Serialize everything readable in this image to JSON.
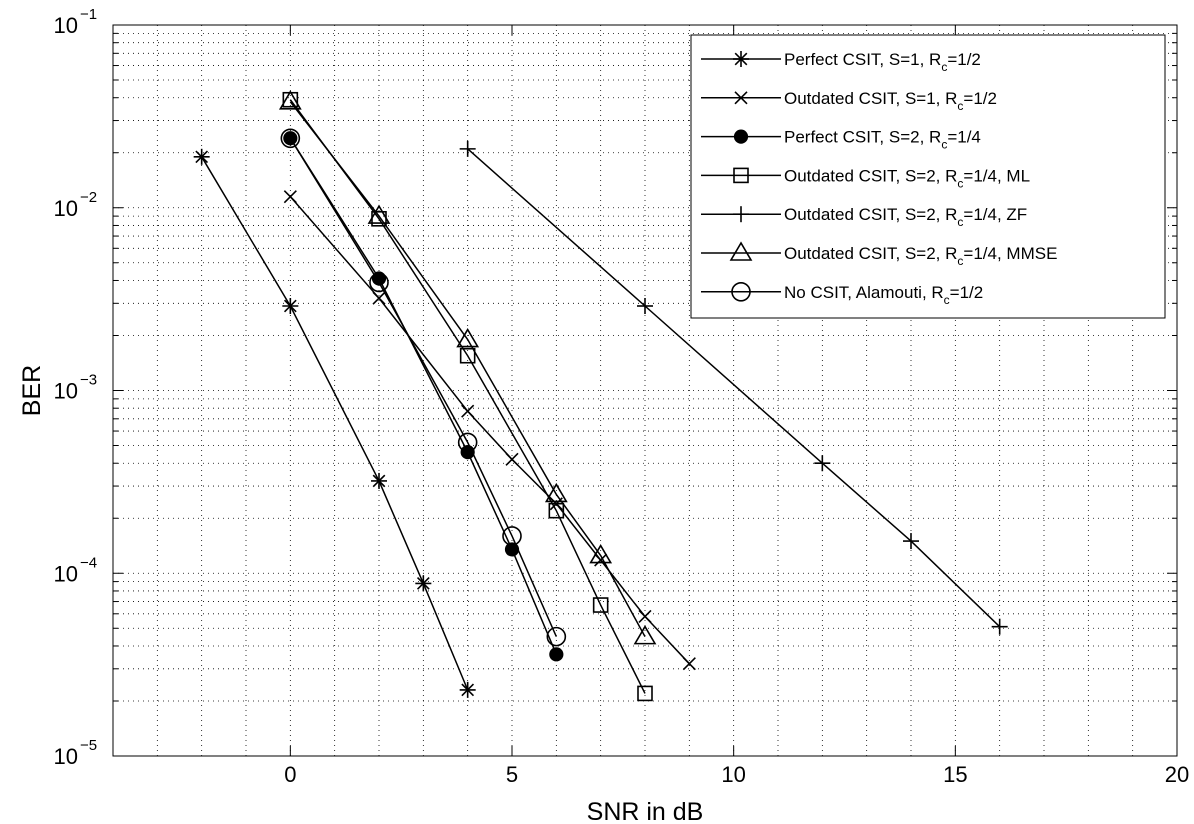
{
  "chart_data": {
    "type": "line",
    "title": "",
    "xlabel": "SNR in dB",
    "ylabel": "BER",
    "xlim": [
      -4,
      20
    ],
    "ylim": [
      1e-05,
      0.1
    ],
    "yscale": "log",
    "grid": true,
    "legend_position": "top-right",
    "x_ticks": [
      {
        "value": 0,
        "label": "0"
      },
      {
        "value": 5,
        "label": "5"
      },
      {
        "value": 10,
        "label": "10"
      },
      {
        "value": 15,
        "label": "15"
      },
      {
        "value": 20,
        "label": "20"
      }
    ],
    "y_ticks": [
      {
        "value": 1e-05,
        "base": "10",
        "exp": "−5"
      },
      {
        "value": 0.0001,
        "base": "10",
        "exp": "−4"
      },
      {
        "value": 0.001,
        "base": "10",
        "exp": "−3"
      },
      {
        "value": 0.01,
        "base": "10",
        "exp": "−2"
      },
      {
        "value": 0.1,
        "base": "10",
        "exp": "−1"
      }
    ],
    "series": [
      {
        "name": "Perfect CSIT, S=1, R_c=1/2",
        "label_main": "Perfect CSIT, S=1, R",
        "label_sub": "c",
        "label_tail": "=1/2",
        "marker": "asterisk",
        "x": [
          -2,
          0,
          2,
          3,
          4
        ],
        "y": [
          0.019,
          0.0029,
          0.00032,
          8.8e-05,
          2.3e-05
        ]
      },
      {
        "name": "Outdated CSIT, S=1, R_c=1/2",
        "label_main": "Outdated CSIT, S=1, R",
        "label_sub": "c",
        "label_tail": "=1/2",
        "marker": "x",
        "x": [
          0,
          2,
          4,
          5,
          6,
          7,
          8,
          9
        ],
        "y": [
          0.0115,
          0.0032,
          0.00077,
          0.00042,
          0.00024,
          0.000118,
          5.8e-05,
          3.2e-05
        ]
      },
      {
        "name": "Perfect CSIT, S=2, R_c=1/4",
        "label_main": "Perfect CSIT, S=2, R",
        "label_sub": "c",
        "label_tail": "=1/4",
        "marker": "filled-circle",
        "x": [
          0,
          2,
          4,
          5,
          6
        ],
        "y": [
          0.024,
          0.0041,
          0.00046,
          0.000135,
          3.6e-05
        ]
      },
      {
        "name": "Outdated CSIT, S=2, R_c=1/4, ML",
        "label_main": "Outdated CSIT, S=2, R",
        "label_sub": "c",
        "label_tail": "=1/4, ML",
        "marker": "square",
        "x": [
          0,
          2,
          4,
          6,
          7,
          8
        ],
        "y": [
          0.039,
          0.0087,
          0.00155,
          0.00022,
          6.7e-05,
          2.2e-05
        ]
      },
      {
        "name": "Outdated CSIT, S=2, R_c=1/4, ZF",
        "label_main": "Outdated CSIT, S=2, R",
        "label_sub": "c",
        "label_tail": "=1/4, ZF",
        "marker": "plus",
        "x": [
          4,
          8,
          12,
          14,
          16
        ],
        "y": [
          0.021,
          0.0029,
          0.0004,
          0.00015,
          5.1e-05
        ]
      },
      {
        "name": "Outdated CSIT, S=2, R_c=1/4, MMSE",
        "label_main": "Outdated CSIT, S=2, R",
        "label_sub": "c",
        "label_tail": "=1/4, MMSE",
        "marker": "triangle",
        "x": [
          0,
          2,
          4,
          6,
          7,
          8
        ],
        "y": [
          0.038,
          0.009,
          0.0019,
          0.00027,
          0.000125,
          4.5e-05
        ]
      },
      {
        "name": "No CSIT, Alamouti, R_c=1/2",
        "label_main": "No CSIT, Alamouti, R",
        "label_sub": "c",
        "label_tail": "=1/2",
        "marker": "open-circle",
        "x": [
          0,
          2,
          4,
          5,
          6
        ],
        "y": [
          0.024,
          0.0039,
          0.00052,
          0.00016,
          4.5e-05
        ]
      }
    ]
  }
}
